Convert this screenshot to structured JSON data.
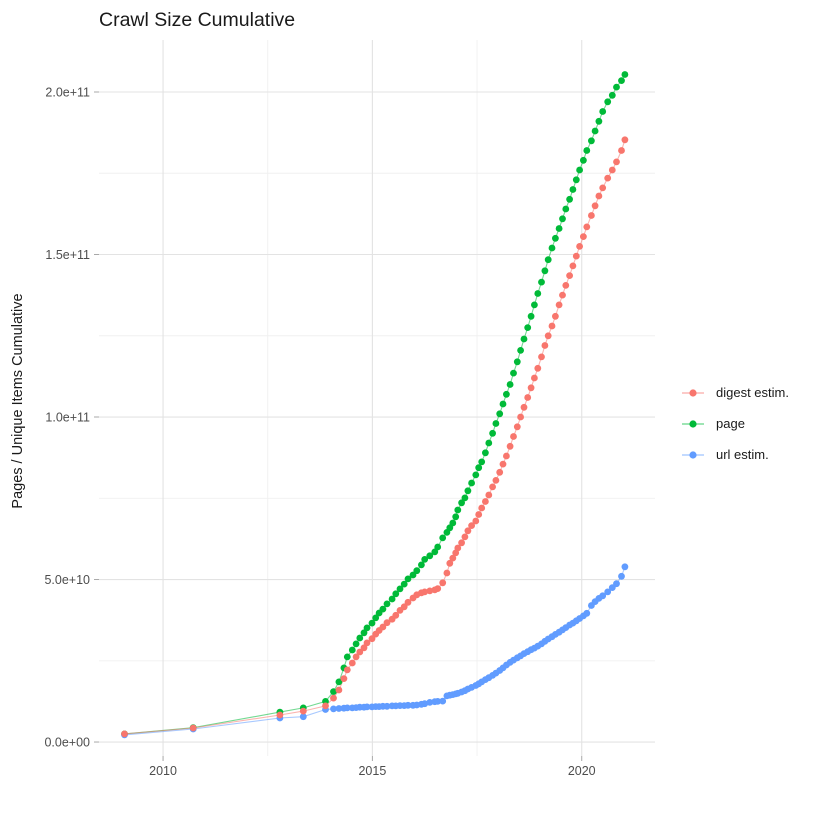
{
  "title": "Crawl Size Cumulative",
  "y_axis": {
    "label": "Pages / Unique Items Cumulative"
  },
  "legend": [
    {
      "label": "digest estim.",
      "color": "#F8766D"
    },
    {
      "label": "page",
      "color": "#00BA38"
    },
    {
      "label": "url estim.",
      "color": "#619CFF"
    }
  ],
  "chart_data": {
    "type": "scatter",
    "title": "Crawl Size Cumulative",
    "xlabel": "",
    "ylabel": "Pages / Unique Items Cumulative",
    "xlim": [
      2008.47,
      2021.75
    ],
    "ylim": [
      -4300000000.0,
      216000000000.0
    ],
    "grid": true,
    "legend_position": "right",
    "x_ticks": [
      {
        "value": 2010,
        "label": "2010"
      },
      {
        "value": 2015,
        "label": "2015"
      },
      {
        "value": 2020,
        "label": "2020"
      }
    ],
    "y_ticks": [
      {
        "value": 0,
        "label": "0.0e+00"
      },
      {
        "value": 50000000000.0,
        "label": "5.0e+10"
      },
      {
        "value": 100000000000.0,
        "label": "1.0e+11"
      },
      {
        "value": 150000000000.0,
        "label": "1.5e+11"
      },
      {
        "value": 200000000000.0,
        "label": "2.0e+11"
      }
    ],
    "x_minor": [
      2012.5,
      2017.5,
      2022.5
    ],
    "y_minor": [
      25000000000.0,
      75000000000.0,
      125000000000.0,
      175000000000.0
    ],
    "x": [
      2009.08,
      2010.72,
      2012.79,
      2013.35,
      2013.88,
      2014.07,
      2014.2,
      2014.32,
      2014.4,
      2014.52,
      2014.61,
      2014.7,
      2014.8,
      2014.87,
      2014.99,
      2015.08,
      2015.16,
      2015.25,
      2015.35,
      2015.47,
      2015.56,
      2015.66,
      2015.76,
      2015.85,
      2015.97,
      2016.06,
      2016.17,
      2016.25,
      2016.37,
      2016.49,
      2016.56,
      2016.68,
      2016.78,
      2016.85,
      2016.92,
      2016.99,
      2017.04,
      2017.13,
      2017.21,
      2017.28,
      2017.37,
      2017.47,
      2017.54,
      2017.61,
      2017.7,
      2017.78,
      2017.87,
      2017.95,
      2018.04,
      2018.12,
      2018.2,
      2018.29,
      2018.37,
      2018.46,
      2018.54,
      2018.62,
      2018.71,
      2018.79,
      2018.87,
      2018.95,
      2019.04,
      2019.12,
      2019.2,
      2019.29,
      2019.37,
      2019.46,
      2019.54,
      2019.62,
      2019.71,
      2019.79,
      2019.87,
      2019.95,
      2020.04,
      2020.12,
      2020.23,
      2020.32,
      2020.41,
      2020.5,
      2020.62,
      2020.73,
      2020.83,
      2020.95,
      2021.03
    ],
    "series": [
      {
        "name": "digest estim.",
        "color": "#F8766D",
        "values": [
          2500000000.0,
          4300000000.0,
          8300000000.0,
          9500000000.0,
          11100000000.0,
          13500000000.0,
          16000000000.0,
          19500000000.0,
          22200000000.0,
          24300000000.0,
          26200000000.0,
          27700000000.0,
          29000000000.0,
          30500000000.0,
          31800000000.0,
          33200000000.0,
          34300000000.0,
          35400000000.0,
          36700000000.0,
          37800000000.0,
          39000000000.0,
          40500000000.0,
          41600000000.0,
          43000000000.0,
          44300000000.0,
          45300000000.0,
          45900000000.0,
          46200000000.0,
          46500000000.0,
          46800000000.0,
          47200000000.0,
          49000000000.0,
          52000000000.0,
          55000000000.0,
          56600000000.0,
          58200000000.0,
          59700000000.0,
          61300000000.0,
          63100000000.0,
          65000000000.0,
          66600000000.0,
          68000000000.0,
          70000000000.0,
          72000000000.0,
          74000000000.0,
          76000000000.0,
          78500000000.0,
          80500000000.0,
          83000000000.0,
          85500000000.0,
          88000000000.0,
          91000000000.0,
          94000000000.0,
          97000000000.0,
          100000000000.0,
          103000000000.0,
          106000000000.0,
          109000000000.0,
          112000000000.0,
          115000000000.0,
          118500000000.0,
          122000000000.0,
          125000000000.0,
          128000000000.0,
          131000000000.0,
          134500000000.0,
          137500000000.0,
          140500000000.0,
          143500000000.0,
          146500000000.0,
          149500000000.0,
          152500000000.0,
          155500000000.0,
          158500000000.0,
          162000000000.0,
          165000000000.0,
          168000000000.0,
          170500000000.0,
          173500000000.0,
          176000000000.0,
          178500000000.0,
          182000000000.0,
          185300000000.0
        ]
      },
      {
        "name": "page",
        "color": "#00BA38",
        "values": [
          2500000000.0,
          4400000000.0,
          9200000000.0,
          10500000000.0,
          12500000000.0,
          15500000000.0,
          18500000000.0,
          22800000000.0,
          26200000000.0,
          28300000000.0,
          30200000000.0,
          32000000000.0,
          33600000000.0,
          35100000000.0,
          36600000000.0,
          38200000000.0,
          39700000000.0,
          40900000000.0,
          42500000000.0,
          44000000000.0,
          45600000000.0,
          47100000000.0,
          48600000000.0,
          50200000000.0,
          51400000000.0,
          52700000000.0,
          54500000000.0,
          56200000000.0,
          57300000000.0,
          58500000000.0,
          60000000000.0,
          62800000000.0,
          64500000000.0,
          65900000000.0,
          67400000000.0,
          69300000000.0,
          71400000000.0,
          73600000000.0,
          75100000000.0,
          77300000000.0,
          79700000000.0,
          82200000000.0,
          84400000000.0,
          86200000000.0,
          89000000000.0,
          92000000000.0,
          95000000000.0,
          98000000000.0,
          101000000000.0,
          104000000000.0,
          107000000000.0,
          110000000000.0,
          113500000000.0,
          117000000000.0,
          120500000000.0,
          124000000000.0,
          127500000000.0,
          131000000000.0,
          134500000000.0,
          138000000000.0,
          141500000000.0,
          145000000000.0,
          148400000000.0,
          152000000000.0,
          155000000000.0,
          158000000000.0,
          161000000000.0,
          164000000000.0,
          167000000000.0,
          170000000000.0,
          173000000000.0,
          176000000000.0,
          179000000000.0,
          182000000000.0,
          185000000000.0,
          188000000000.0,
          191000000000.0,
          194000000000.0,
          197000000000.0,
          199000000000.0,
          201500000000.0,
          203500000000.0,
          205400000000.0
        ]
      },
      {
        "name": "url estim.",
        "color": "#619CFF",
        "values": [
          2200000000.0,
          4000000000.0,
          7400000000.0,
          7800000000.0,
          10000000000.0,
          10200000000.0,
          10300000000.0,
          10400000000.0,
          10500000000.0,
          10500000000.0,
          10600000000.0,
          10700000000.0,
          10700000000.0,
          10800000000.0,
          10800000000.0,
          10900000000.0,
          10900000000.0,
          11000000000.0,
          11000000000.0,
          11100000000.0,
          11100000000.0,
          11200000000.0,
          11200000000.0,
          11300000000.0,
          11300000000.0,
          11400000000.0,
          11600000000.0,
          11800000000.0,
          12200000000.0,
          12400000000.0,
          12500000000.0,
          12600000000.0,
          14200000000.0,
          14400000000.0,
          14600000000.0,
          14800000000.0,
          15000000000.0,
          15400000000.0,
          15800000000.0,
          16300000000.0,
          16800000000.0,
          17400000000.0,
          17900000000.0,
          18500000000.0,
          19200000000.0,
          19800000000.0,
          20500000000.0,
          21200000000.0,
          22000000000.0,
          22800000000.0,
          23700000000.0,
          24500000000.0,
          25200000000.0,
          25900000000.0,
          26500000000.0,
          27200000000.0,
          27800000000.0,
          28400000000.0,
          28900000000.0,
          29500000000.0,
          30200000000.0,
          31000000000.0,
          31700000000.0,
          32400000000.0,
          33100000000.0,
          33800000000.0,
          34500000000.0,
          35200000000.0,
          36000000000.0,
          36600000000.0,
          37300000000.0,
          38000000000.0,
          38800000000.0,
          39600000000.0,
          42000000000.0,
          43200000000.0,
          44200000000.0,
          45000000000.0,
          46200000000.0,
          47500000000.0,
          48700000000.0,
          51000000000.0,
          53900000000.0
        ]
      }
    ]
  }
}
